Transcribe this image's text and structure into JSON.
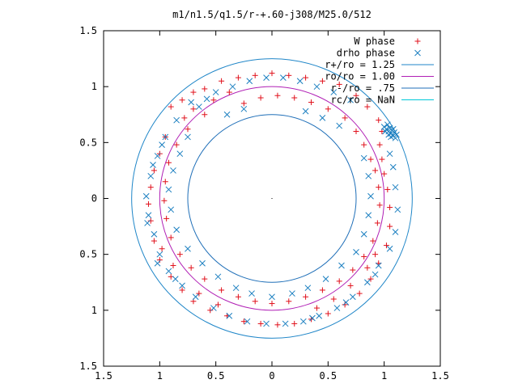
{
  "chart_data": {
    "type": "scatter",
    "title": "m1/n1.5/q1.5/r-+.60-j308/M25.0/512",
    "xlim": [
      -1.5,
      1.5
    ],
    "ylim": [
      -1.5,
      1.5
    ],
    "x_ticks": [
      -1.5,
      -1,
      -0.5,
      0,
      0.5,
      1,
      1.5
    ],
    "y_ticks": [
      -1.5,
      -1,
      -0.5,
      0,
      0.5,
      1,
      1.5
    ],
    "x_tick_labels": [
      "1.5",
      "1",
      "0.5",
      "0",
      "0.5",
      "1",
      "1.5"
    ],
    "y_tick_labels": [
      "1.5",
      "1",
      "0.5",
      "0",
      "0.5",
      "1",
      "1.5"
    ],
    "grid": false,
    "legend_position": "top-right",
    "series": [
      {
        "name": "W phase",
        "marker": "plus",
        "color": "#e0101b",
        "points": [
          [
            -0.9,
            0.82
          ],
          [
            -0.8,
            0.88
          ],
          [
            -0.7,
            0.95
          ],
          [
            -0.6,
            0.98
          ],
          [
            -0.45,
            1.05
          ],
          [
            -0.3,
            1.08
          ],
          [
            -0.15,
            1.1
          ],
          [
            0.0,
            1.12
          ],
          [
            0.15,
            1.1
          ],
          [
            0.3,
            1.08
          ],
          [
            0.45,
            1.05
          ],
          [
            0.6,
            1.02
          ],
          [
            0.75,
            0.92
          ],
          [
            0.85,
            0.82
          ],
          [
            0.95,
            0.7
          ],
          [
            -0.95,
            0.55
          ],
          [
            -1.0,
            0.4
          ],
          [
            -1.05,
            0.25
          ],
          [
            -1.08,
            0.1
          ],
          [
            -1.1,
            -0.05
          ],
          [
            -1.08,
            -0.2
          ],
          [
            -1.05,
            -0.38
          ],
          [
            -1.0,
            -0.55
          ],
          [
            -0.9,
            -0.7
          ],
          [
            -0.8,
            -0.82
          ],
          [
            -0.7,
            -0.92
          ],
          [
            -0.55,
            -1.0
          ],
          [
            -0.4,
            -1.05
          ],
          [
            -0.25,
            -1.1
          ],
          [
            -0.1,
            -1.12
          ],
          [
            0.05,
            -1.13
          ],
          [
            0.2,
            -1.12
          ],
          [
            0.35,
            -1.08
          ],
          [
            0.5,
            -1.03
          ],
          [
            0.65,
            -0.95
          ],
          [
            0.78,
            -0.85
          ],
          [
            0.88,
            -0.72
          ],
          [
            0.95,
            -0.58
          ],
          [
            1.02,
            -0.42
          ],
          [
            1.05,
            -0.25
          ],
          [
            1.05,
            -0.08
          ],
          [
            1.03,
            0.08
          ],
          [
            1.0,
            0.22
          ],
          [
            0.98,
            0.35
          ],
          [
            0.96,
            0.48
          ],
          [
            -0.25,
            0.85
          ],
          [
            -0.1,
            0.9
          ],
          [
            0.05,
            0.92
          ],
          [
            0.2,
            0.9
          ],
          [
            0.35,
            0.86
          ],
          [
            0.5,
            0.8
          ],
          [
            0.65,
            0.72
          ],
          [
            0.75,
            0.6
          ],
          [
            0.82,
            0.48
          ],
          [
            0.88,
            0.35
          ],
          [
            -0.6,
            0.75
          ],
          [
            -0.75,
            0.62
          ],
          [
            -0.85,
            0.48
          ],
          [
            -0.92,
            0.32
          ],
          [
            -0.95,
            0.15
          ],
          [
            -0.96,
            -0.02
          ],
          [
            -0.94,
            -0.18
          ],
          [
            -0.9,
            -0.35
          ],
          [
            -0.82,
            -0.5
          ],
          [
            -0.72,
            -0.62
          ],
          [
            -0.6,
            -0.72
          ],
          [
            -0.45,
            -0.82
          ],
          [
            -0.3,
            -0.88
          ],
          [
            -0.15,
            -0.92
          ],
          [
            0.0,
            -0.94
          ],
          [
            0.15,
            -0.92
          ],
          [
            0.3,
            -0.88
          ],
          [
            0.45,
            -0.82
          ],
          [
            0.6,
            -0.74
          ],
          [
            0.72,
            -0.64
          ],
          [
            0.82,
            -0.52
          ],
          [
            0.9,
            -0.38
          ],
          [
            0.94,
            -0.22
          ],
          [
            0.96,
            -0.06
          ],
          [
            0.95,
            0.1
          ],
          [
            0.92,
            0.25
          ],
          [
            -0.78,
            0.72
          ],
          [
            -0.7,
            0.8
          ],
          [
            -0.52,
            0.88
          ],
          [
            -0.38,
            0.95
          ],
          [
            -0.98,
            -0.45
          ],
          [
            -0.88,
            -0.6
          ],
          [
            -0.65,
            -0.85
          ],
          [
            -0.48,
            -0.95
          ],
          [
            0.4,
            -0.98
          ],
          [
            0.55,
            -0.9
          ],
          [
            0.7,
            -0.78
          ],
          [
            0.85,
            -0.62
          ],
          [
            0.92,
            -0.5
          ],
          [
            0.98,
            0.6
          ]
        ]
      },
      {
        "name": "drho phase",
        "marker": "cross",
        "color": "#1b7fc0",
        "points": [
          [
            -0.65,
            0.82
          ],
          [
            -0.5,
            0.95
          ],
          [
            -0.35,
            1.0
          ],
          [
            -0.2,
            1.05
          ],
          [
            -0.05,
            1.08
          ],
          [
            0.1,
            1.08
          ],
          [
            0.25,
            1.05
          ],
          [
            0.4,
            1.0
          ],
          [
            0.55,
            0.95
          ],
          [
            0.7,
            0.88
          ],
          [
            -0.85,
            0.7
          ],
          [
            -0.95,
            0.55
          ],
          [
            -1.02,
            0.38
          ],
          [
            -1.08,
            0.2
          ],
          [
            -1.12,
            0.02
          ],
          [
            -1.1,
            -0.15
          ],
          [
            -1.05,
            -0.32
          ],
          [
            -1.0,
            -0.5
          ],
          [
            -0.92,
            -0.65
          ],
          [
            -0.8,
            -0.78
          ],
          [
            -0.68,
            -0.88
          ],
          [
            -0.52,
            -0.98
          ],
          [
            -0.38,
            -1.05
          ],
          [
            -0.22,
            -1.1
          ],
          [
            -0.05,
            -1.12
          ],
          [
            0.12,
            -1.12
          ],
          [
            0.28,
            -1.1
          ],
          [
            0.42,
            -1.05
          ],
          [
            0.58,
            -0.98
          ],
          [
            0.72,
            -0.88
          ],
          [
            0.85,
            -0.75
          ],
          [
            0.95,
            -0.6
          ],
          [
            1.05,
            -0.45
          ],
          [
            1.1,
            -0.3
          ],
          [
            1.12,
            -0.1
          ],
          [
            1.1,
            0.1
          ],
          [
            1.08,
            0.28
          ],
          [
            1.05,
            0.4
          ],
          [
            -0.4,
            0.75
          ],
          [
            -0.25,
            0.8
          ],
          [
            0.3,
            0.78
          ],
          [
            0.45,
            0.72
          ],
          [
            0.6,
            0.65
          ],
          [
            -0.75,
            0.55
          ],
          [
            -0.82,
            0.4
          ],
          [
            -0.88,
            0.25
          ],
          [
            -0.92,
            0.08
          ],
          [
            -0.9,
            -0.1
          ],
          [
            -0.85,
            -0.28
          ],
          [
            -0.75,
            -0.45
          ],
          [
            -0.62,
            -0.58
          ],
          [
            -0.48,
            -0.7
          ],
          [
            -0.32,
            -0.8
          ],
          [
            -0.18,
            -0.85
          ],
          [
            0.0,
            -0.88
          ],
          [
            0.18,
            -0.85
          ],
          [
            0.32,
            -0.8
          ],
          [
            0.48,
            -0.72
          ],
          [
            0.62,
            -0.6
          ],
          [
            0.75,
            -0.48
          ],
          [
            0.82,
            -0.32
          ],
          [
            0.86,
            -0.15
          ],
          [
            0.88,
            0.02
          ],
          [
            0.86,
            0.2
          ],
          [
            0.82,
            0.36
          ],
          [
            1.02,
            0.62
          ],
          [
            1.04,
            0.6
          ],
          [
            1.06,
            0.58
          ],
          [
            1.08,
            0.56
          ],
          [
            1.1,
            0.54
          ],
          [
            1.0,
            0.64
          ],
          [
            1.03,
            0.66
          ],
          [
            1.05,
            0.63
          ],
          [
            1.07,
            0.61
          ],
          [
            1.09,
            0.59
          ],
          [
            1.01,
            0.6
          ],
          [
            1.04,
            0.57
          ],
          [
            1.06,
            0.55
          ],
          [
            1.08,
            0.62
          ],
          [
            1.11,
            0.57
          ],
          [
            -0.72,
            0.86
          ],
          [
            -0.58,
            0.89
          ],
          [
            -0.98,
            0.48
          ],
          [
            -1.06,
            0.3
          ],
          [
            -1.11,
            -0.22
          ],
          [
            -1.02,
            -0.58
          ],
          [
            -0.86,
            -0.72
          ],
          [
            0.36,
            -1.07
          ],
          [
            0.66,
            -0.93
          ],
          [
            0.92,
            -0.68
          ]
        ]
      }
    ],
    "curves": [
      {
        "name": "r+/ro = 1.25",
        "type": "circle",
        "radius": 1.25,
        "color": "#1f86c8"
      },
      {
        "name": "ro/ro = 1.00",
        "type": "circle",
        "radius": 1.0,
        "color": "#b01fb5"
      },
      {
        "name": "r-/ro = .75",
        "type": "circle",
        "radius": 0.75,
        "color": "#1f6fb8"
      },
      {
        "name": "rc/ro = NaN",
        "type": "circle",
        "radius": null,
        "color": "#00c8d8"
      }
    ]
  }
}
